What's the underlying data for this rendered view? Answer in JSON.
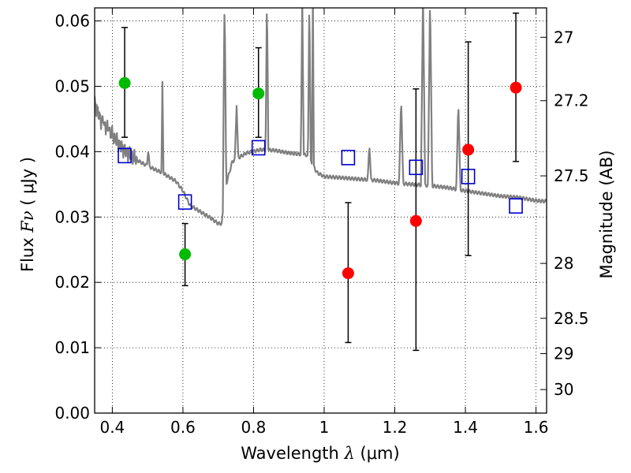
{
  "chart_data": {
    "type": "scatter",
    "xlabel_prefix": "Wavelength  ",
    "xlabel_symbol": "λ",
    "xlabel_unit": " (μm)",
    "ylabel_prefix": "Flux  ",
    "ylabel_symbol": "Fν",
    "ylabel_unit": "  ( μJy )",
    "ylabel_right": "Magnitude (AB)",
    "xlim": [
      0.35,
      1.63
    ],
    "ylim": [
      0.0,
      0.062
    ],
    "grid": true,
    "x_ticks": [
      {
        "value": 0.4,
        "label": "0.4"
      },
      {
        "value": 0.6,
        "label": "0.6"
      },
      {
        "value": 0.8,
        "label": "0.8"
      },
      {
        "value": 1.0,
        "label": "1"
      },
      {
        "value": 1.2,
        "label": "1.2"
      },
      {
        "value": 1.4,
        "label": "1.4"
      },
      {
        "value": 1.6,
        "label": "1.6"
      }
    ],
    "y_ticks": [
      {
        "value": 0.0,
        "label": "0.00"
      },
      {
        "value": 0.01,
        "label": "0.01"
      },
      {
        "value": 0.02,
        "label": "0.02"
      },
      {
        "value": 0.03,
        "label": "0.03"
      },
      {
        "value": 0.04,
        "label": "0.04"
      },
      {
        "value": 0.05,
        "label": "0.05"
      },
      {
        "value": 0.06,
        "label": "0.06"
      }
    ],
    "mag_ticks": [
      {
        "flux": 0.0575,
        "label": "27"
      },
      {
        "flux": 0.0478,
        "label": "27.2"
      },
      {
        "flux": 0.0363,
        "label": "27.5"
      },
      {
        "flux": 0.0229,
        "label": "28"
      },
      {
        "flux": 0.0145,
        "label": "28.5"
      },
      {
        "flux": 0.0091,
        "label": "29"
      },
      {
        "flux": 0.0036,
        "label": "30"
      }
    ],
    "colors": {
      "sed": "#808080",
      "green": "#00bb00",
      "red": "#ff0000",
      "model": "#0000cc",
      "errorbar": "#000000"
    },
    "green_points": [
      {
        "x": 0.435,
        "y": 0.0505,
        "err_lo": 0.0422,
        "err_hi": 0.059
      },
      {
        "x": 0.606,
        "y": 0.0243,
        "err_lo": 0.0195,
        "err_hi": 0.029
      },
      {
        "x": 0.814,
        "y": 0.0489,
        "err_lo": 0.0422,
        "err_hi": 0.0559
      }
    ],
    "red_points": [
      {
        "x": 1.068,
        "y": 0.0214,
        "err_lo": 0.0108,
        "err_hi": 0.0322
      },
      {
        "x": 1.26,
        "y": 0.0294,
        "err_lo": 0.0096,
        "err_hi": 0.0496
      },
      {
        "x": 1.408,
        "y": 0.0403,
        "err_lo": 0.0241,
        "err_hi": 0.0568
      },
      {
        "x": 1.543,
        "y": 0.0498,
        "err_lo": 0.0385,
        "err_hi": 0.0612
      }
    ],
    "model_points": [
      {
        "x": 0.435,
        "y": 0.0394
      },
      {
        "x": 0.606,
        "y": 0.0323
      },
      {
        "x": 0.814,
        "y": 0.0406
      },
      {
        "x": 1.068,
        "y": 0.0391
      },
      {
        "x": 1.26,
        "y": 0.0376
      },
      {
        "x": 1.408,
        "y": 0.0362
      },
      {
        "x": 1.543,
        "y": 0.0317
      }
    ],
    "sed_continuum": [
      [
        0.35,
        0.0475
      ],
      [
        0.37,
        0.0445
      ],
      [
        0.4,
        0.0425
      ],
      [
        0.43,
        0.0405
      ],
      [
        0.46,
        0.039
      ],
      [
        0.5,
        0.0378
      ],
      [
        0.54,
        0.0368
      ],
      [
        0.58,
        0.0355
      ],
      [
        0.6,
        0.034
      ],
      [
        0.62,
        0.0318
      ],
      [
        0.65,
        0.0308
      ],
      [
        0.68,
        0.0298
      ],
      [
        0.7,
        0.029
      ],
      [
        0.71,
        0.029
      ],
      [
        0.72,
        0.0345
      ],
      [
        0.74,
        0.0385
      ],
      [
        0.78,
        0.0398
      ],
      [
        0.82,
        0.0403
      ],
      [
        0.86,
        0.0402
      ],
      [
        0.9,
        0.0398
      ],
      [
        0.95,
        0.0395
      ],
      [
        0.98,
        0.0368
      ],
      [
        1.0,
        0.0362
      ],
      [
        1.05,
        0.036
      ],
      [
        1.1,
        0.0358
      ],
      [
        1.15,
        0.0356
      ],
      [
        1.2,
        0.0352
      ],
      [
        1.25,
        0.035
      ],
      [
        1.3,
        0.0348
      ],
      [
        1.35,
        0.0345
      ],
      [
        1.4,
        0.034
      ],
      [
        1.45,
        0.0336
      ],
      [
        1.5,
        0.0332
      ],
      [
        1.55,
        0.033
      ],
      [
        1.58,
        0.0327
      ],
      [
        1.6,
        0.0325
      ],
      [
        1.63,
        0.0324
      ]
    ],
    "sed_lines": [
      {
        "x": 0.373,
        "peak": 0.0445,
        "w": 0.004
      },
      {
        "x": 0.388,
        "peak": 0.0432,
        "w": 0.004
      },
      {
        "x": 0.502,
        "peak": 0.0402,
        "w": 0.004
      },
      {
        "x": 0.542,
        "peak": 0.0507,
        "w": 0.003
      },
      {
        "x": 0.718,
        "peak": 0.064,
        "w": 0.005
      },
      {
        "x": 0.752,
        "peak": 0.047,
        "w": 0.005
      },
      {
        "x": 0.838,
        "peak": 0.064,
        "w": 0.004
      },
      {
        "x": 0.938,
        "peak": 0.064,
        "w": 0.004
      },
      {
        "x": 0.958,
        "peak": 0.064,
        "w": 0.004
      },
      {
        "x": 0.968,
        "peak": 0.064,
        "w": 0.003
      },
      {
        "x": 1.128,
        "peak": 0.041,
        "w": 0.005
      },
      {
        "x": 1.218,
        "peak": 0.048,
        "w": 0.006
      },
      {
        "x": 1.28,
        "peak": 0.064,
        "w": 0.006
      },
      {
        "x": 1.3,
        "peak": 0.064,
        "w": 0.006
      },
      {
        "x": 1.38,
        "peak": 0.0475,
        "w": 0.006
      }
    ]
  }
}
